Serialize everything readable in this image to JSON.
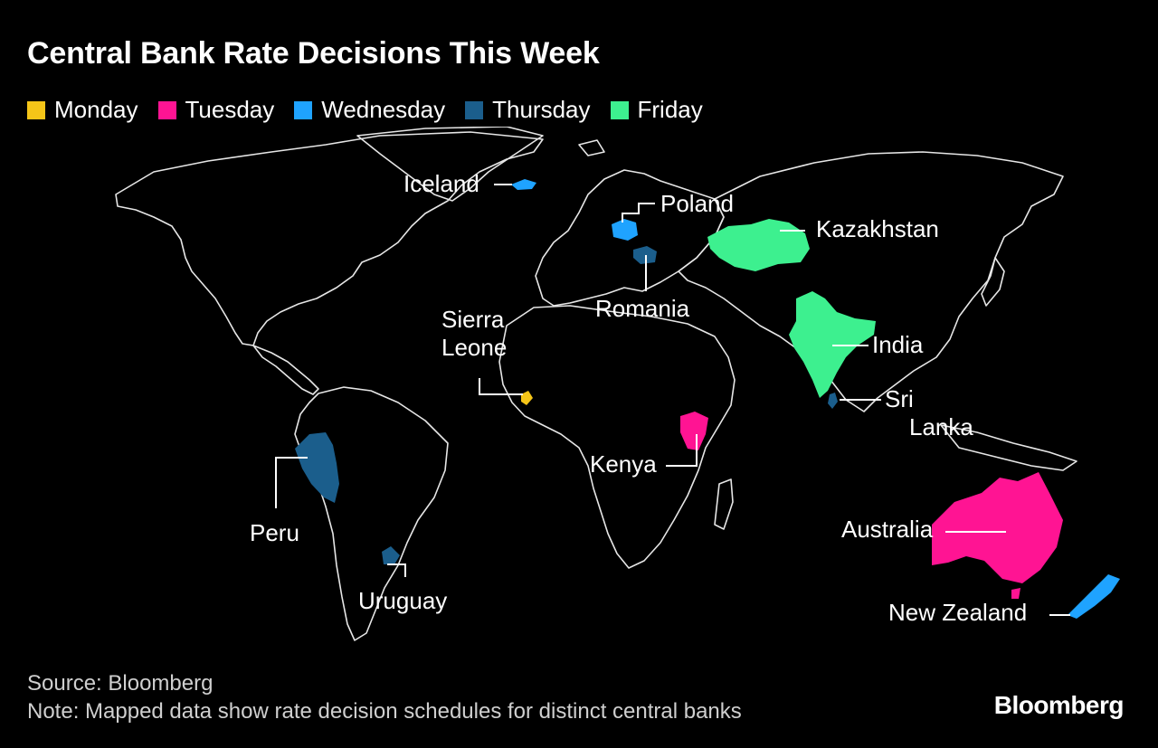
{
  "title": "Central Bank Rate Decisions This Week",
  "legend": [
    {
      "label": "Monday",
      "color": "#f5c518"
    },
    {
      "label": "Tuesday",
      "color": "#ff1493"
    },
    {
      "label": "Wednesday",
      "color": "#1fa3ff"
    },
    {
      "label": "Thursday",
      "color": "#1b5e8c"
    },
    {
      "label": "Friday",
      "color": "#3df08f"
    }
  ],
  "countries": {
    "iceland": {
      "label": "Iceland",
      "day": "Wednesday"
    },
    "poland": {
      "label": "Poland",
      "day": "Wednesday"
    },
    "kazakhstan": {
      "label": "Kazakhstan",
      "day": "Friday"
    },
    "romania": {
      "label": "Romania",
      "day": "Thursday"
    },
    "sierra_leone": {
      "label1": "Sierra",
      "label2": "Leone",
      "day": "Monday"
    },
    "india": {
      "label": "India",
      "day": "Friday"
    },
    "sri_lanka": {
      "label1": "Sri",
      "label2": "Lanka",
      "day": "Thursday"
    },
    "kenya": {
      "label": "Kenya",
      "day": "Tuesday"
    },
    "peru": {
      "label": "Peru",
      "day": "Thursday"
    },
    "uruguay": {
      "label": "Uruguay",
      "day": "Thursday"
    },
    "australia": {
      "label": "Australia",
      "day": "Tuesday"
    },
    "new_zealand": {
      "label": "New Zealand",
      "day": "Wednesday"
    }
  },
  "source": "Source: Bloomberg",
  "note": "Note: Mapped data show rate decision schedules for distinct central banks",
  "logo": "Bloomberg"
}
